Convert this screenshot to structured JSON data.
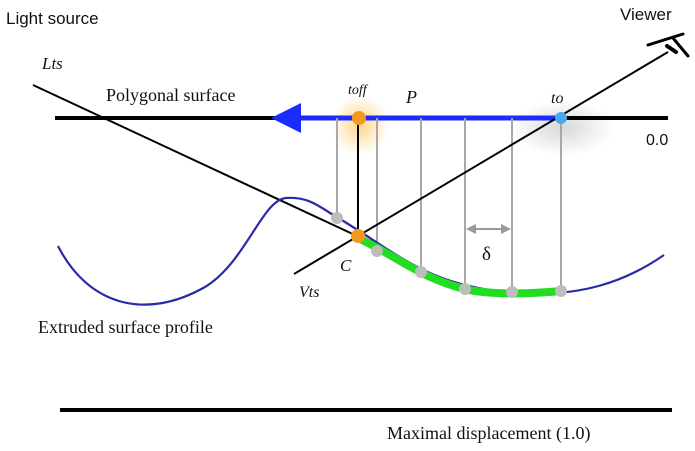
{
  "labels": {
    "light_source": "Light source",
    "viewer": "Viewer",
    "l_ts": "Lts",
    "v_ts": "Vts",
    "polygonal_surface": "Polygonal surface",
    "t_off": "toff",
    "p": "P",
    "t_o": "to",
    "zero": "0.0",
    "c": "C",
    "delta": "δ",
    "extruded_surface_profile": "Extruded surface profile",
    "maximal_displacement": "Maximal displacement (1.0)"
  },
  "colors": {
    "line": "#000000",
    "surface_ray": "#1a2cff",
    "intersection_path": "#22dd22",
    "profile_curve": "#2a2aa8",
    "sample_lines": "#a8a8a8",
    "sample_points": "#bdbdbd",
    "highlight_orange": "#f29a20",
    "highlight_blue": "#4aa8ee"
  }
}
